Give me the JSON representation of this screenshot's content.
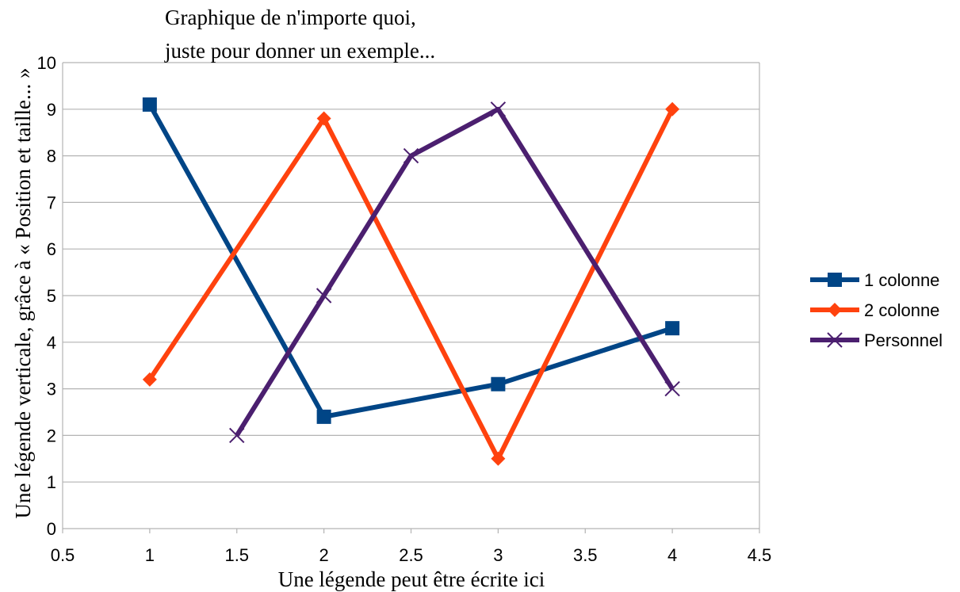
{
  "chart_data": {
    "type": "scatter",
    "title": [
      "Graphique de n'importe quoi,",
      "juste pour donner un exemple..."
    ],
    "xlabel": "Une légende peut être écrite ici",
    "ylabel": "Une légende verticale, grâce à « Position et taille... »",
    "xlim": [
      0.5,
      4.5
    ],
    "ylim": [
      0,
      10
    ],
    "xticks": [
      "0.5",
      "1",
      "1.5",
      "2",
      "2.5",
      "3",
      "3.5",
      "4",
      "4.5"
    ],
    "yticks": [
      "0",
      "1",
      "2",
      "3",
      "4",
      "5",
      "6",
      "7",
      "8",
      "9",
      "10"
    ],
    "grid": "horizontal",
    "legend_position": "right",
    "series": [
      {
        "name": "1 colonne",
        "color": "#004586",
        "marker": "square",
        "x": [
          1,
          2,
          3,
          4
        ],
        "y": [
          9.1,
          2.4,
          3.1,
          4.3
        ]
      },
      {
        "name": "2 colonne",
        "color": "#ff420e",
        "marker": "diamond",
        "x": [
          1,
          2,
          3,
          4
        ],
        "y": [
          3.2,
          8.8,
          1.5,
          9.0
        ]
      },
      {
        "name": "Personnel",
        "color": "#4b1f6f",
        "marker": "x",
        "x": [
          1.5,
          2,
          2.5,
          3,
          4
        ],
        "y": [
          2,
          5,
          8,
          9,
          3
        ]
      }
    ]
  }
}
